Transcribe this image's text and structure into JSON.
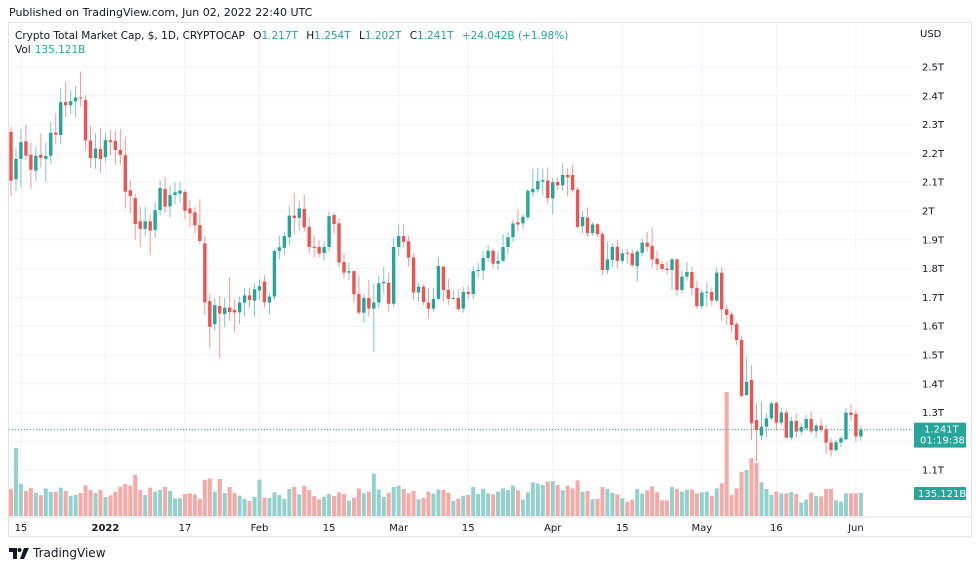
{
  "published": "Published on TradingView.com, Jun 02, 2022 22:40 UTC",
  "legend": {
    "symbol": "Crypto Total Market Cap, $, 1D, CRYPTOCAP",
    "o_label": "O",
    "o_value": "1.217T",
    "h_label": "H",
    "h_value": "1.254T",
    "l_label": "L",
    "l_value": "1.202T",
    "c_label": "C",
    "c_value": "1.241T",
    "change": "+24.042B (+1.98%)",
    "vol_label": "Vol",
    "vol_value": "135.121B"
  },
  "currency": "USD",
  "footer": {
    "brand": "TradingView"
  },
  "colors": {
    "up": "#26a69a",
    "down": "#ef5350",
    "up_volume": "#93d2cc",
    "down_volume": "#f7a9a7",
    "grid": "#f0f3fa"
  },
  "chart_data": {
    "type": "candlestick",
    "interval": "1D",
    "price_unit": "T (USD)",
    "volume_unit": "B (USD)",
    "y_ticks": [
      {
        "value": 2.5,
        "label": "2.5T"
      },
      {
        "value": 2.4,
        "label": "2.4T"
      },
      {
        "value": 2.3,
        "label": "2.3T"
      },
      {
        "value": 2.2,
        "label": "2.2T"
      },
      {
        "value": 2.1,
        "label": "2.1T"
      },
      {
        "value": 2.0,
        "label": "2T"
      },
      {
        "value": 1.9,
        "label": "1.9T"
      },
      {
        "value": 1.8,
        "label": "1.8T"
      },
      {
        "value": 1.7,
        "label": "1.7T"
      },
      {
        "value": 1.6,
        "label": "1.6T"
      },
      {
        "value": 1.5,
        "label": "1.5T"
      },
      {
        "value": 1.4,
        "label": "1.4T"
      },
      {
        "value": 1.3,
        "label": "1.3T"
      },
      {
        "value": 1.1,
        "label": "1.1T"
      }
    ],
    "x_ticks": [
      {
        "date": "2021-12-15",
        "label": "15",
        "bold": false
      },
      {
        "date": "2022-01-01",
        "label": "2022",
        "bold": true
      },
      {
        "date": "2022-01-17",
        "label": "17",
        "bold": false
      },
      {
        "date": "2022-02-01",
        "label": "Feb",
        "bold": false
      },
      {
        "date": "2022-02-15",
        "label": "15",
        "bold": false
      },
      {
        "date": "2022-03-01",
        "label": "Mar",
        "bold": false
      },
      {
        "date": "2022-03-15",
        "label": "15",
        "bold": false
      },
      {
        "date": "2022-04-01",
        "label": "Apr",
        "bold": false
      },
      {
        "date": "2022-04-15",
        "label": "15",
        "bold": false
      },
      {
        "date": "2022-05-01",
        "label": "May",
        "bold": false
      },
      {
        "date": "2022-05-16",
        "label": "16",
        "bold": false
      },
      {
        "date": "2022-06-01",
        "label": "Jun",
        "bold": false
      }
    ],
    "last_price": {
      "value": 1.241,
      "label": "1.241T",
      "countdown": "01:19:38"
    },
    "last_volume": {
      "value": 135.121,
      "label": "135.121B"
    },
    "start_date": "2021-12-13",
    "columns": [
      "open",
      "high",
      "low",
      "close",
      "volume"
    ],
    "candles": [
      [
        2.275,
        2.293,
        2.052,
        2.105,
        159
      ],
      [
        2.11,
        2.218,
        2.07,
        2.181,
        399
      ],
      [
        2.181,
        2.284,
        2.084,
        2.239,
        190
      ],
      [
        2.242,
        2.299,
        2.175,
        2.192,
        147
      ],
      [
        2.195,
        2.237,
        2.077,
        2.143,
        166
      ],
      [
        2.14,
        2.223,
        2.105,
        2.192,
        135
      ],
      [
        2.195,
        2.269,
        2.151,
        2.185,
        123
      ],
      [
        2.181,
        2.237,
        2.102,
        2.191,
        162
      ],
      [
        2.192,
        2.309,
        2.164,
        2.272,
        141
      ],
      [
        2.272,
        2.339,
        2.231,
        2.265,
        143
      ],
      [
        2.264,
        2.426,
        2.231,
        2.378,
        166
      ],
      [
        2.378,
        2.448,
        2.327,
        2.367,
        147
      ],
      [
        2.367,
        2.42,
        2.337,
        2.381,
        117
      ],
      [
        2.381,
        2.434,
        2.325,
        2.394,
        123
      ],
      [
        2.394,
        2.484,
        2.362,
        2.392,
        135
      ],
      [
        2.385,
        2.403,
        2.209,
        2.245,
        180
      ],
      [
        2.245,
        2.295,
        2.15,
        2.184,
        153
      ],
      [
        2.184,
        2.269,
        2.147,
        2.217,
        135
      ],
      [
        2.215,
        2.288,
        2.133,
        2.181,
        153
      ],
      [
        2.187,
        2.272,
        2.169,
        2.246,
        112
      ],
      [
        2.246,
        2.284,
        2.193,
        2.24,
        121
      ],
      [
        2.243,
        2.279,
        2.161,
        2.212,
        143
      ],
      [
        2.212,
        2.284,
        2.161,
        2.195,
        172
      ],
      [
        2.194,
        2.256,
        2.008,
        2.067,
        188
      ],
      [
        2.072,
        2.105,
        1.992,
        2.052,
        178
      ],
      [
        2.045,
        2.06,
        1.901,
        1.955,
        241
      ],
      [
        1.964,
        2.015,
        1.874,
        1.938,
        153
      ],
      [
        1.938,
        2.014,
        1.914,
        1.964,
        123
      ],
      [
        1.964,
        1.989,
        1.847,
        1.932,
        166
      ],
      [
        1.934,
        2.031,
        1.907,
        2.003,
        143
      ],
      [
        2.003,
        2.107,
        1.985,
        2.08,
        153
      ],
      [
        2.077,
        2.119,
        1.994,
        2.015,
        170
      ],
      [
        2.016,
        2.089,
        1.978,
        2.055,
        147
      ],
      [
        2.055,
        2.1,
        2.024,
        2.065,
        104
      ],
      [
        2.06,
        2.1,
        2.029,
        2.071,
        104
      ],
      [
        2.066,
        2.073,
        1.971,
        2.001,
        129
      ],
      [
        2.009,
        2.038,
        1.943,
        1.992,
        133
      ],
      [
        1.995,
        2.014,
        1.922,
        1.95,
        127
      ],
      [
        1.951,
        2.041,
        1.885,
        1.896,
        100
      ],
      [
        1.888,
        1.913,
        1.639,
        1.683,
        213
      ],
      [
        1.687,
        1.712,
        1.523,
        1.598,
        221
      ],
      [
        1.607,
        1.698,
        1.584,
        1.673,
        143
      ],
      [
        1.67,
        1.705,
        1.491,
        1.644,
        217
      ],
      [
        1.642,
        1.698,
        1.596,
        1.664,
        135
      ],
      [
        1.665,
        1.77,
        1.619,
        1.649,
        170
      ],
      [
        1.657,
        1.691,
        1.581,
        1.648,
        135
      ],
      [
        1.648,
        1.703,
        1.607,
        1.682,
        119
      ],
      [
        1.682,
        1.733,
        1.633,
        1.707,
        100
      ],
      [
        1.707,
        1.732,
        1.665,
        1.691,
        88
      ],
      [
        1.689,
        1.749,
        1.633,
        1.728,
        112
      ],
      [
        1.724,
        1.763,
        1.693,
        1.739,
        213
      ],
      [
        1.755,
        1.778,
        1.665,
        1.683,
        108
      ],
      [
        1.682,
        1.714,
        1.641,
        1.703,
        106
      ],
      [
        1.703,
        1.869,
        1.691,
        1.861,
        139
      ],
      [
        1.861,
        1.915,
        1.832,
        1.874,
        123
      ],
      [
        1.872,
        1.927,
        1.846,
        1.913,
        100
      ],
      [
        1.909,
        2.017,
        1.88,
        1.984,
        159
      ],
      [
        1.984,
        2.061,
        1.917,
        1.976,
        170
      ],
      [
        1.976,
        2.035,
        1.932,
        2.009,
        127
      ],
      [
        2.007,
        2.056,
        1.928,
        1.943,
        176
      ],
      [
        1.945,
        1.976,
        1.852,
        1.875,
        153
      ],
      [
        1.876,
        1.915,
        1.839,
        1.872,
        117
      ],
      [
        1.875,
        1.898,
        1.839,
        1.852,
        98
      ],
      [
        1.854,
        1.894,
        1.827,
        1.875,
        112
      ],
      [
        1.875,
        1.997,
        1.86,
        1.982,
        129
      ],
      [
        1.986,
        1.994,
        1.921,
        1.955,
        117
      ],
      [
        1.957,
        1.976,
        1.805,
        1.821,
        139
      ],
      [
        1.823,
        1.853,
        1.766,
        1.786,
        129
      ],
      [
        1.786,
        1.821,
        1.759,
        1.791,
        90
      ],
      [
        1.791,
        1.795,
        1.682,
        1.711,
        108
      ],
      [
        1.712,
        1.777,
        1.639,
        1.647,
        162
      ],
      [
        1.647,
        1.712,
        1.612,
        1.698,
        133
      ],
      [
        1.698,
        1.761,
        1.633,
        1.661,
        143
      ],
      [
        1.661,
        1.749,
        1.512,
        1.682,
        249
      ],
      [
        1.682,
        1.775,
        1.662,
        1.749,
        155
      ],
      [
        1.749,
        1.807,
        1.714,
        1.754,
        112
      ],
      [
        1.751,
        1.784,
        1.651,
        1.678,
        137
      ],
      [
        1.678,
        1.908,
        1.668,
        1.875,
        170
      ],
      [
        1.875,
        1.95,
        1.844,
        1.913,
        178
      ],
      [
        1.913,
        1.955,
        1.874,
        1.893,
        159
      ],
      [
        1.895,
        1.913,
        1.807,
        1.838,
        133
      ],
      [
        1.839,
        1.853,
        1.691,
        1.717,
        147
      ],
      [
        1.717,
        1.751,
        1.685,
        1.737,
        98
      ],
      [
        1.737,
        1.746,
        1.673,
        1.684,
        106
      ],
      [
        1.682,
        1.733,
        1.626,
        1.661,
        143
      ],
      [
        1.661,
        1.732,
        1.651,
        1.695,
        131
      ],
      [
        1.695,
        1.839,
        1.691,
        1.809,
        155
      ],
      [
        1.807,
        1.809,
        1.685,
        1.726,
        153
      ],
      [
        1.726,
        1.765,
        1.673,
        1.695,
        137
      ],
      [
        1.695,
        1.726,
        1.691,
        1.698,
        90
      ],
      [
        1.698,
        1.728,
        1.651,
        1.659,
        102
      ],
      [
        1.661,
        1.737,
        1.647,
        1.719,
        119
      ],
      [
        1.719,
        1.741,
        1.693,
        1.712,
        123
      ],
      [
        1.712,
        1.809,
        1.693,
        1.791,
        170
      ],
      [
        1.791,
        1.821,
        1.768,
        1.795,
        129
      ],
      [
        1.793,
        1.862,
        1.761,
        1.837,
        159
      ],
      [
        1.837,
        1.882,
        1.823,
        1.862,
        133
      ],
      [
        1.862,
        1.867,
        1.801,
        1.817,
        127
      ],
      [
        1.817,
        1.859,
        1.795,
        1.827,
        143
      ],
      [
        1.827,
        1.92,
        1.821,
        1.875,
        162
      ],
      [
        1.875,
        1.926,
        1.85,
        1.909,
        153
      ],
      [
        1.909,
        1.971,
        1.893,
        1.957,
        178
      ],
      [
        1.961,
        2.006,
        1.93,
        1.953,
        151
      ],
      [
        1.957,
        1.99,
        1.939,
        1.98,
        96
      ],
      [
        1.978,
        2.077,
        1.967,
        2.07,
        139
      ],
      [
        2.065,
        2.146,
        2.05,
        2.077,
        198
      ],
      [
        2.075,
        2.15,
        2.064,
        2.104,
        190
      ],
      [
        2.102,
        2.146,
        2.056,
        2.107,
        182
      ],
      [
        2.106,
        2.151,
        2.025,
        2.045,
        202
      ],
      [
        2.044,
        2.115,
        1.989,
        2.1,
        205
      ],
      [
        2.101,
        2.117,
        2.073,
        2.089,
        182
      ],
      [
        2.089,
        2.166,
        2.071,
        2.125,
        151
      ],
      [
        2.125,
        2.148,
        2.05,
        2.117,
        178
      ],
      [
        2.125,
        2.159,
        2.064,
        2.073,
        162
      ],
      [
        2.074,
        2.082,
        1.939,
        1.945,
        209
      ],
      [
        1.947,
        2.0,
        1.923,
        1.979,
        143
      ],
      [
        1.977,
        2.012,
        1.911,
        1.923,
        147
      ],
      [
        1.923,
        1.96,
        1.915,
        1.953,
        98
      ],
      [
        1.954,
        1.957,
        1.909,
        1.92,
        100
      ],
      [
        1.92,
        1.93,
        1.778,
        1.795,
        170
      ],
      [
        1.795,
        1.894,
        1.781,
        1.832,
        159
      ],
      [
        1.83,
        1.888,
        1.807,
        1.875,
        135
      ],
      [
        1.876,
        1.899,
        1.801,
        1.827,
        127
      ],
      [
        1.827,
        1.867,
        1.818,
        1.853,
        104
      ],
      [
        1.855,
        1.868,
        1.818,
        1.853,
        84
      ],
      [
        1.853,
        1.867,
        1.805,
        1.812,
        96
      ],
      [
        1.809,
        1.867,
        1.755,
        1.859,
        159
      ],
      [
        1.855,
        1.904,
        1.842,
        1.89,
        131
      ],
      [
        1.89,
        1.927,
        1.859,
        1.876,
        151
      ],
      [
        1.879,
        1.943,
        1.803,
        1.832,
        174
      ],
      [
        1.835,
        1.861,
        1.793,
        1.815,
        139
      ],
      [
        1.816,
        1.825,
        1.79,
        1.799,
        92
      ],
      [
        1.8,
        1.823,
        1.78,
        1.795,
        92
      ],
      [
        1.795,
        1.839,
        1.726,
        1.832,
        170
      ],
      [
        1.832,
        1.835,
        1.706,
        1.726,
        159
      ],
      [
        1.726,
        1.793,
        1.714,
        1.772,
        143
      ],
      [
        1.772,
        1.823,
        1.757,
        1.788,
        155
      ],
      [
        1.788,
        1.807,
        1.707,
        1.732,
        155
      ],
      [
        1.733,
        1.757,
        1.659,
        1.67,
        133
      ],
      [
        1.67,
        1.726,
        1.659,
        1.717,
        139
      ],
      [
        1.717,
        1.751,
        1.668,
        1.719,
        143
      ],
      [
        1.719,
        1.734,
        1.673,
        1.689,
        119
      ],
      [
        1.689,
        1.803,
        1.684,
        1.786,
        162
      ],
      [
        1.786,
        1.805,
        1.619,
        1.659,
        192
      ],
      [
        1.659,
        1.674,
        1.604,
        1.639,
        728
      ],
      [
        1.641,
        1.65,
        1.578,
        1.604,
        123
      ],
      [
        1.607,
        1.616,
        1.535,
        1.552,
        162
      ],
      [
        1.552,
        1.566,
        1.352,
        1.358,
        258
      ],
      [
        1.361,
        1.491,
        1.358,
        1.407,
        270
      ],
      [
        1.413,
        1.464,
        1.205,
        1.263,
        339
      ],
      [
        1.274,
        1.33,
        1.13,
        1.24,
        311
      ],
      [
        1.22,
        1.338,
        1.205,
        1.251,
        198
      ],
      [
        1.251,
        1.297,
        1.214,
        1.28,
        159
      ],
      [
        1.28,
        1.338,
        1.274,
        1.332,
        123
      ],
      [
        1.334,
        1.338,
        1.237,
        1.265,
        143
      ],
      [
        1.265,
        1.315,
        1.255,
        1.3,
        133
      ],
      [
        1.3,
        1.311,
        1.21,
        1.213,
        133
      ],
      [
        1.213,
        1.286,
        1.205,
        1.271,
        141
      ],
      [
        1.271,
        1.297,
        1.214,
        1.234,
        129
      ],
      [
        1.234,
        1.263,
        1.222,
        1.25,
        80
      ],
      [
        1.245,
        1.292,
        1.237,
        1.278,
        96
      ],
      [
        1.278,
        1.303,
        1.228,
        1.235,
        137
      ],
      [
        1.235,
        1.263,
        1.211,
        1.255,
        117
      ],
      [
        1.255,
        1.278,
        1.23,
        1.24,
        115
      ],
      [
        1.242,
        1.258,
        1.156,
        1.196,
        159
      ],
      [
        1.196,
        1.211,
        1.147,
        1.17,
        159
      ],
      [
        1.17,
        1.205,
        1.164,
        1.197,
        92
      ],
      [
        1.196,
        1.219,
        1.18,
        1.211,
        84
      ],
      [
        1.207,
        1.317,
        1.205,
        1.3,
        133
      ],
      [
        1.3,
        1.329,
        1.271,
        1.292,
        133
      ],
      [
        1.295,
        1.309,
        1.199,
        1.217,
        133
      ],
      [
        1.217,
        1.254,
        1.202,
        1.241,
        135.121
      ]
    ]
  }
}
